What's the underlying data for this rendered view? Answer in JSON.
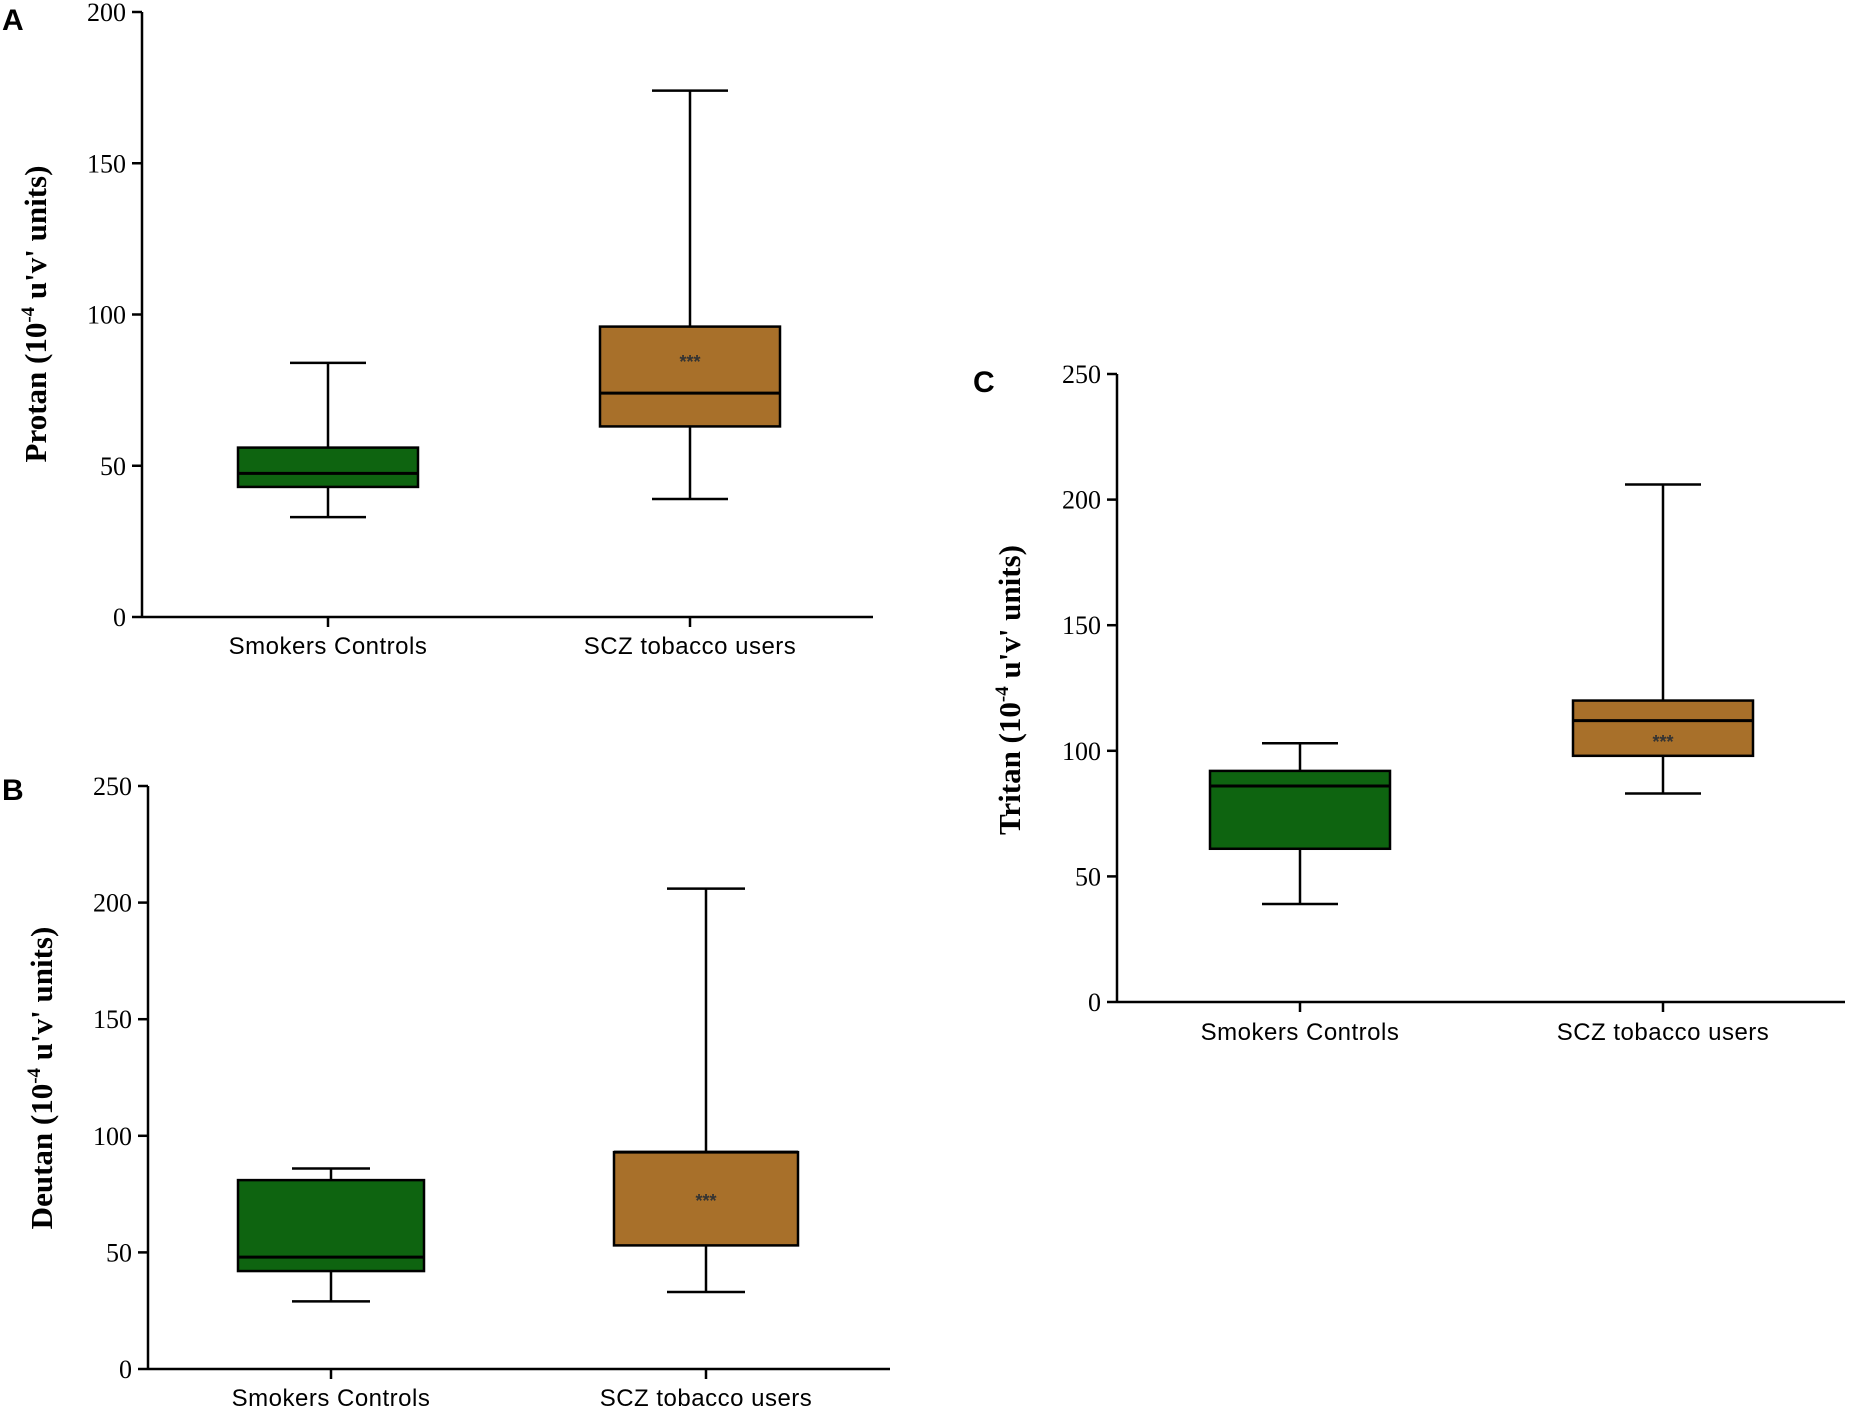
{
  "chart_data": [
    {
      "id": "A",
      "type": "boxplot",
      "panel_label": "A",
      "ylabel": {
        "pre": "Protan (10",
        "sup": "-4",
        "post": " u'v' units)"
      },
      "ylim": [
        0,
        200
      ],
      "yticks": [
        0,
        50,
        100,
        150,
        200
      ],
      "categories": [
        "Smokers Controls",
        "SCZ tobacco users"
      ],
      "boxes": [
        {
          "name": "Smokers Controls",
          "min": 33,
          "q1": 43,
          "median": 47.5,
          "q3": 56,
          "max": 84,
          "color": "#0e6410",
          "annotation": ""
        },
        {
          "name": "SCZ tobacco users",
          "min": 39,
          "q1": 63,
          "median": 74,
          "q3": 96,
          "max": 174,
          "color": "#a8702a",
          "annotation": "***"
        }
      ]
    },
    {
      "id": "B",
      "type": "boxplot",
      "panel_label": "B",
      "ylabel": {
        "pre": "Deutan (10",
        "sup": "-4",
        "post": " u'v' units)"
      },
      "ylim": [
        0,
        250
      ],
      "yticks": [
        0,
        50,
        100,
        150,
        200,
        250
      ],
      "categories": [
        "Smokers Controls",
        "SCZ tobacco users"
      ],
      "boxes": [
        {
          "name": "Smokers Controls",
          "min": 29,
          "q1": 42,
          "median": 48,
          "q3": 81,
          "max": 86,
          "color": "#0e6410",
          "annotation": ""
        },
        {
          "name": "SCZ tobacco users",
          "min": 33,
          "q1": 53,
          "median": 93,
          "q3": 93,
          "max": 206,
          "color": "#a8702a",
          "annotation": "***"
        }
      ]
    },
    {
      "id": "C",
      "type": "boxplot",
      "panel_label": "C",
      "ylabel": {
        "pre": "Tritan (10",
        "sup": "-4",
        "post": " u'v' units)"
      },
      "ylim": [
        0,
        250
      ],
      "yticks": [
        0,
        50,
        100,
        150,
        200,
        250
      ],
      "categories": [
        "Smokers Controls",
        "SCZ tobacco users"
      ],
      "boxes": [
        {
          "name": "Smokers Controls",
          "min": 39,
          "q1": 61,
          "median": 86,
          "q3": 92,
          "max": 103,
          "color": "#0e6410",
          "annotation": ""
        },
        {
          "name": "SCZ tobacco users",
          "min": 83,
          "q1": 98,
          "median": 112,
          "q3": 120,
          "max": 206,
          "color": "#a8702a",
          "annotation": "***"
        }
      ]
    }
  ]
}
